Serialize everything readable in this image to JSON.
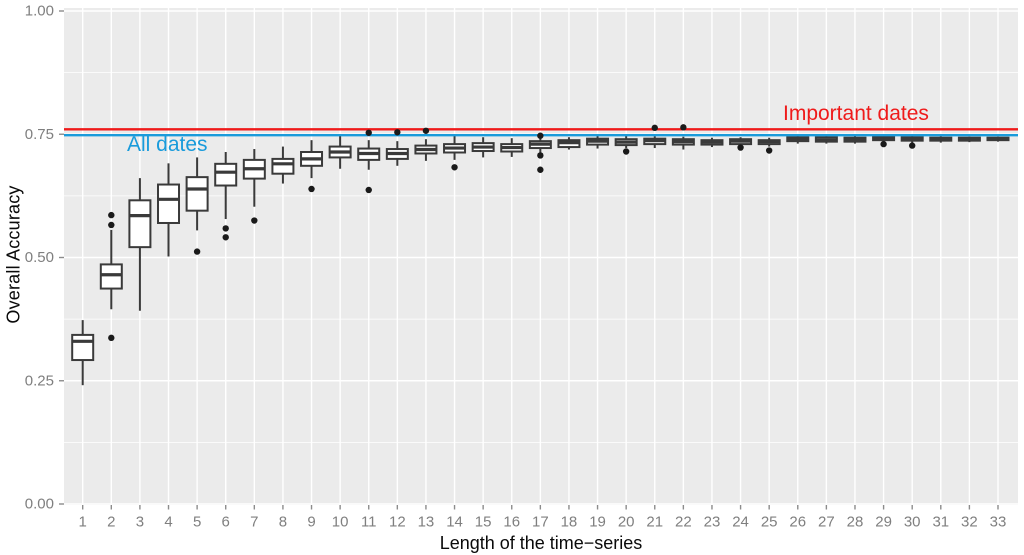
{
  "chart_data": {
    "type": "boxplot",
    "title": "",
    "xlabel": "Length of the time−series",
    "ylabel": "Overall Accuracy",
    "x_categories": [
      1,
      2,
      3,
      4,
      5,
      6,
      7,
      8,
      9,
      10,
      11,
      12,
      13,
      14,
      15,
      16,
      17,
      18,
      19,
      20,
      21,
      22,
      23,
      24,
      25,
      26,
      27,
      28,
      29,
      30,
      31,
      32,
      33
    ],
    "ylim": [
      0.0,
      1.0
    ],
    "yticks": {
      "values": [
        0.0,
        0.25,
        0.5,
        0.75,
        1.0
      ],
      "labels": [
        "0.00",
        "0.25",
        "0.50",
        "0.75",
        "1.00"
      ],
      "minor_values": [
        0.125,
        0.375,
        0.625,
        0.875
      ]
    },
    "grid": true,
    "panel_bg": "#ebebeb",
    "grid_color": "#ffffff",
    "box_stroke": "#3a3a3a",
    "box_fill": "#ffffff",
    "outlier_color": "#1a1a1a",
    "tick_color": "#8c8c8c",
    "tick_text_color": "#7f7f7f",
    "axis_text_color": "#0a0a0a",
    "boxes": [
      {
        "x": 1,
        "low": 0.241,
        "q1": 0.292,
        "median": 0.33,
        "q3": 0.343,
        "high": 0.373,
        "outliers": []
      },
      {
        "x": 2,
        "low": 0.395,
        "q1": 0.437,
        "median": 0.465,
        "q3": 0.486,
        "high": 0.556,
        "outliers": [
          0.586,
          0.566,
          0.337
        ]
      },
      {
        "x": 3,
        "low": 0.392,
        "q1": 0.521,
        "median": 0.585,
        "q3": 0.616,
        "high": 0.661,
        "outliers": []
      },
      {
        "x": 4,
        "low": 0.502,
        "q1": 0.57,
        "median": 0.618,
        "q3": 0.648,
        "high": 0.691,
        "outliers": []
      },
      {
        "x": 5,
        "low": 0.555,
        "q1": 0.595,
        "median": 0.639,
        "q3": 0.663,
        "high": 0.703,
        "outliers": [
          0.512
        ]
      },
      {
        "x": 6,
        "low": 0.578,
        "q1": 0.646,
        "median": 0.673,
        "q3": 0.69,
        "high": 0.714,
        "outliers": [
          0.559,
          0.541
        ]
      },
      {
        "x": 7,
        "low": 0.603,
        "q1": 0.66,
        "median": 0.68,
        "q3": 0.698,
        "high": 0.72,
        "outliers": [
          0.575
        ]
      },
      {
        "x": 8,
        "low": 0.65,
        "q1": 0.67,
        "median": 0.69,
        "q3": 0.7,
        "high": 0.725,
        "outliers": []
      },
      {
        "x": 9,
        "low": 0.661,
        "q1": 0.686,
        "median": 0.7,
        "q3": 0.714,
        "high": 0.738,
        "outliers": [
          0.639
        ]
      },
      {
        "x": 10,
        "low": 0.68,
        "q1": 0.703,
        "median": 0.714,
        "q3": 0.725,
        "high": 0.747,
        "outliers": []
      },
      {
        "x": 11,
        "low": 0.678,
        "q1": 0.698,
        "median": 0.711,
        "q3": 0.721,
        "high": 0.738,
        "outliers": [
          0.753,
          0.637
        ]
      },
      {
        "x": 12,
        "low": 0.686,
        "q1": 0.7,
        "median": 0.711,
        "q3": 0.72,
        "high": 0.736,
        "outliers": [
          0.754
        ]
      },
      {
        "x": 13,
        "low": 0.696,
        "q1": 0.711,
        "median": 0.719,
        "q3": 0.727,
        "high": 0.74,
        "outliers": [
          0.757
        ]
      },
      {
        "x": 14,
        "low": 0.698,
        "q1": 0.713,
        "median": 0.722,
        "q3": 0.73,
        "high": 0.748,
        "outliers": [
          0.683
        ]
      },
      {
        "x": 15,
        "low": 0.703,
        "q1": 0.716,
        "median": 0.724,
        "q3": 0.732,
        "high": 0.744,
        "outliers": []
      },
      {
        "x": 16,
        "low": 0.704,
        "q1": 0.715,
        "median": 0.723,
        "q3": 0.73,
        "high": 0.742,
        "outliers": []
      },
      {
        "x": 17,
        "low": 0.712,
        "q1": 0.722,
        "median": 0.73,
        "q3": 0.736,
        "high": 0.742,
        "outliers": [
          0.747,
          0.707,
          0.678
        ]
      },
      {
        "x": 18,
        "low": 0.719,
        "q1": 0.724,
        "median": 0.733,
        "q3": 0.738,
        "high": 0.744,
        "outliers": []
      },
      {
        "x": 19,
        "low": 0.721,
        "q1": 0.729,
        "median": 0.736,
        "q3": 0.741,
        "high": 0.748,
        "outliers": []
      },
      {
        "x": 20,
        "low": 0.722,
        "q1": 0.728,
        "median": 0.734,
        "q3": 0.74,
        "high": 0.748,
        "outliers": [
          0.715
        ]
      },
      {
        "x": 21,
        "low": 0.722,
        "q1": 0.73,
        "median": 0.737,
        "q3": 0.741,
        "high": 0.746,
        "outliers": [
          0.763
        ]
      },
      {
        "x": 22,
        "low": 0.719,
        "q1": 0.729,
        "median": 0.735,
        "q3": 0.74,
        "high": 0.745,
        "outliers": [
          0.764
        ]
      },
      {
        "x": 23,
        "low": 0.724,
        "q1": 0.729,
        "median": 0.734,
        "q3": 0.738,
        "high": 0.743,
        "outliers": []
      },
      {
        "x": 24,
        "low": 0.728,
        "q1": 0.73,
        "median": 0.736,
        "q3": 0.74,
        "high": 0.744,
        "outliers": [
          0.723
        ]
      },
      {
        "x": 25,
        "low": 0.725,
        "q1": 0.73,
        "median": 0.735,
        "q3": 0.738,
        "high": 0.743,
        "outliers": [
          0.717
        ]
      },
      {
        "x": 26,
        "low": 0.731,
        "q1": 0.736,
        "median": 0.74,
        "q3": 0.744,
        "high": 0.747,
        "outliers": []
      },
      {
        "x": 27,
        "low": 0.731,
        "q1": 0.735,
        "median": 0.739,
        "q3": 0.744,
        "high": 0.747,
        "outliers": []
      },
      {
        "x": 28,
        "low": 0.731,
        "q1": 0.735,
        "median": 0.739,
        "q3": 0.743,
        "high": 0.748,
        "outliers": []
      },
      {
        "x": 29,
        "low": 0.734,
        "q1": 0.738,
        "median": 0.742,
        "q3": 0.746,
        "high": 0.749,
        "outliers": [
          0.73
        ]
      },
      {
        "x": 30,
        "low": 0.733,
        "q1": 0.737,
        "median": 0.74,
        "q3": 0.744,
        "high": 0.747,
        "outliers": [
          0.727
        ]
      },
      {
        "x": 31,
        "low": 0.733,
        "q1": 0.737,
        "median": 0.74,
        "q3": 0.743,
        "high": 0.746,
        "outliers": []
      },
      {
        "x": 32,
        "low": 0.734,
        "q1": 0.737,
        "median": 0.74,
        "q3": 0.743,
        "high": 0.745,
        "outliers": []
      },
      {
        "x": 33,
        "low": 0.735,
        "q1": 0.738,
        "median": 0.74,
        "q3": 0.743,
        "high": 0.745,
        "outliers": []
      }
    ],
    "ref_lines": [
      {
        "label": "Important dates",
        "value": 0.76,
        "color": "#ef1a1a"
      },
      {
        "label": "All dates",
        "value": 0.748,
        "color": "#199bdb"
      }
    ],
    "legend_position": "none"
  }
}
